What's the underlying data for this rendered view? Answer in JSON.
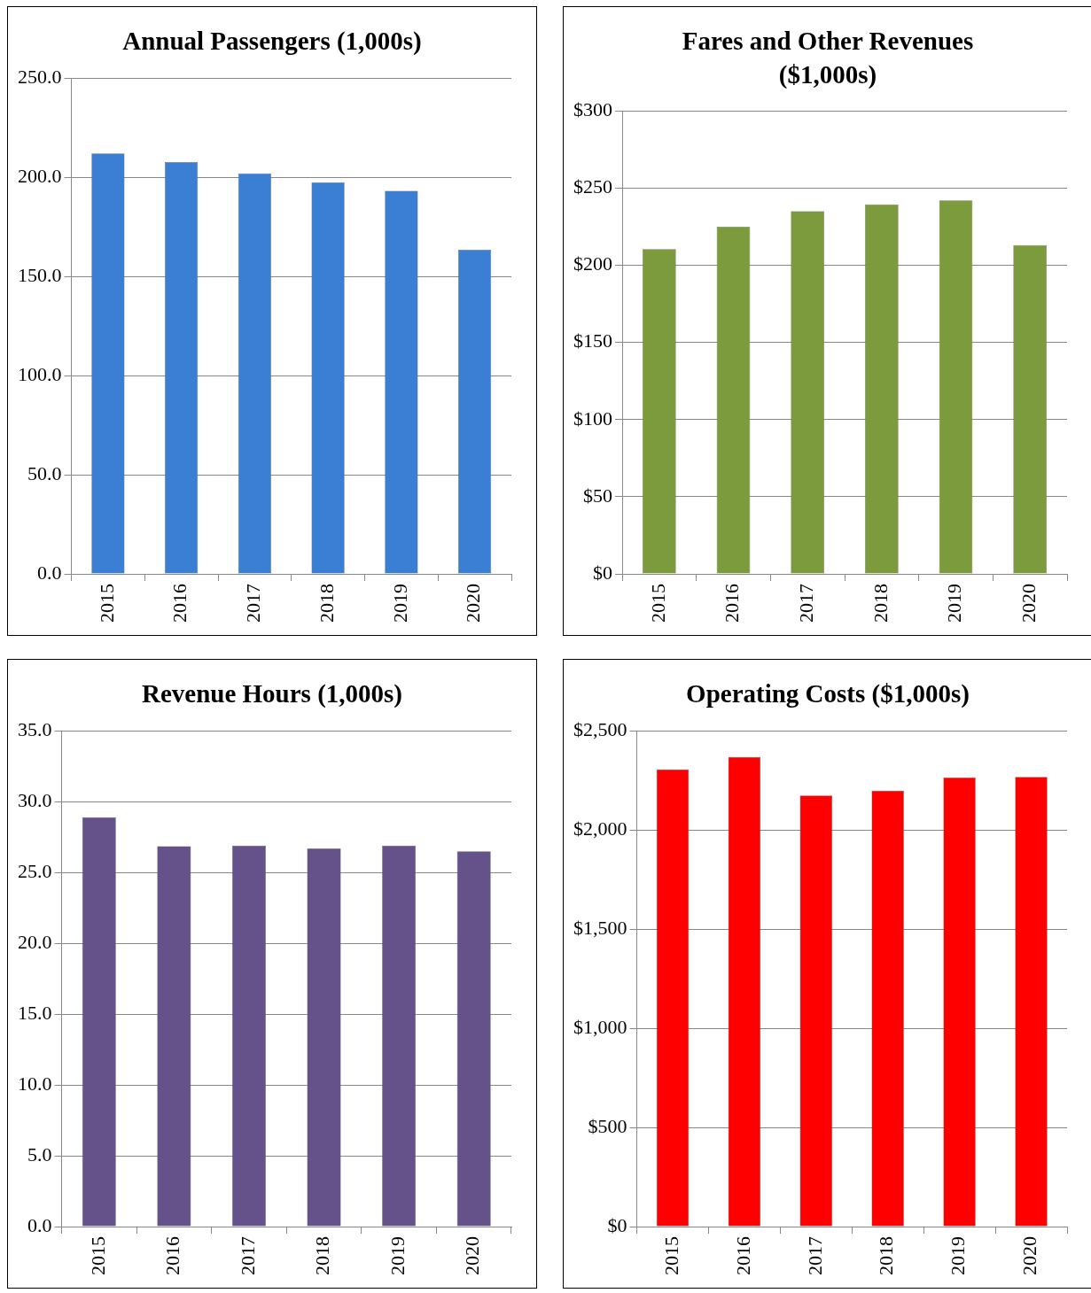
{
  "chart_data": [
    {
      "type": "bar",
      "title": "Annual Passengers (1,000s)",
      "categories": [
        "2015",
        "2016",
        "2017",
        "2018",
        "2019",
        "2020"
      ],
      "values": [
        212,
        207.7,
        202,
        197.4,
        193.1,
        163.5
      ],
      "color": "#3a7fd3",
      "ylim": [
        0,
        250
      ],
      "yticks": [
        {
          "value": 0,
          "label": "0.0"
        },
        {
          "value": 50,
          "label": "50.0"
        },
        {
          "value": 100,
          "label": "100.0"
        },
        {
          "value": 150,
          "label": "150.0"
        },
        {
          "value": 200,
          "label": "200.0"
        },
        {
          "value": 250,
          "label": "250.0"
        }
      ],
      "grid": "y"
    },
    {
      "type": "bar",
      "title": "Fares and Other Revenues ($1,000s)",
      "categories": [
        "2015",
        "2016",
        "2017",
        "2018",
        "2019",
        "2020"
      ],
      "values": [
        210.5,
        225,
        235,
        239.5,
        242,
        213
      ],
      "color": "#7b9b3c",
      "ylim": [
        0,
        300
      ],
      "yticks": [
        {
          "value": 0,
          "label": "$0"
        },
        {
          "value": 50,
          "label": "$50"
        },
        {
          "value": 100,
          "label": "$100"
        },
        {
          "value": 150,
          "label": "$150"
        },
        {
          "value": 200,
          "label": "$200"
        },
        {
          "value": 250,
          "label": "$250"
        },
        {
          "value": 300,
          "label": "$300"
        }
      ],
      "grid": "y"
    },
    {
      "type": "bar",
      "title": "Revenue Hours (1,000s)",
      "categories": [
        "2015",
        "2016",
        "2017",
        "2018",
        "2019",
        "2020"
      ],
      "values": [
        28.9,
        26.85,
        26.9,
        26.7,
        26.9,
        26.5
      ],
      "color": "#66528a",
      "ylim": [
        0,
        35
      ],
      "yticks": [
        {
          "value": 0,
          "label": "0.0"
        },
        {
          "value": 5,
          "label": "5.0"
        },
        {
          "value": 10,
          "label": "10.0"
        },
        {
          "value": 15,
          "label": "15.0"
        },
        {
          "value": 20,
          "label": "20.0"
        },
        {
          "value": 25,
          "label": "25.0"
        },
        {
          "value": 30,
          "label": "30.0"
        },
        {
          "value": 35,
          "label": "35.0"
        }
      ],
      "grid": "y"
    },
    {
      "type": "bar",
      "title": "Operating Costs ($1,000s)",
      "categories": [
        "2015",
        "2016",
        "2017",
        "2018",
        "2019",
        "2020"
      ],
      "values": [
        2306,
        2368,
        2174,
        2198,
        2264,
        2268
      ],
      "color": "#ff0000",
      "ylim": [
        0,
        2500
      ],
      "yticks": [
        {
          "value": 0,
          "label": "$0"
        },
        {
          "value": 500,
          "label": "$500"
        },
        {
          "value": 1000,
          "label": "$1,000"
        },
        {
          "value": 1500,
          "label": "$1,500"
        },
        {
          "value": 2000,
          "label": "$2,000"
        },
        {
          "value": 2500,
          "label": "$2,500"
        }
      ],
      "grid": "y"
    }
  ]
}
